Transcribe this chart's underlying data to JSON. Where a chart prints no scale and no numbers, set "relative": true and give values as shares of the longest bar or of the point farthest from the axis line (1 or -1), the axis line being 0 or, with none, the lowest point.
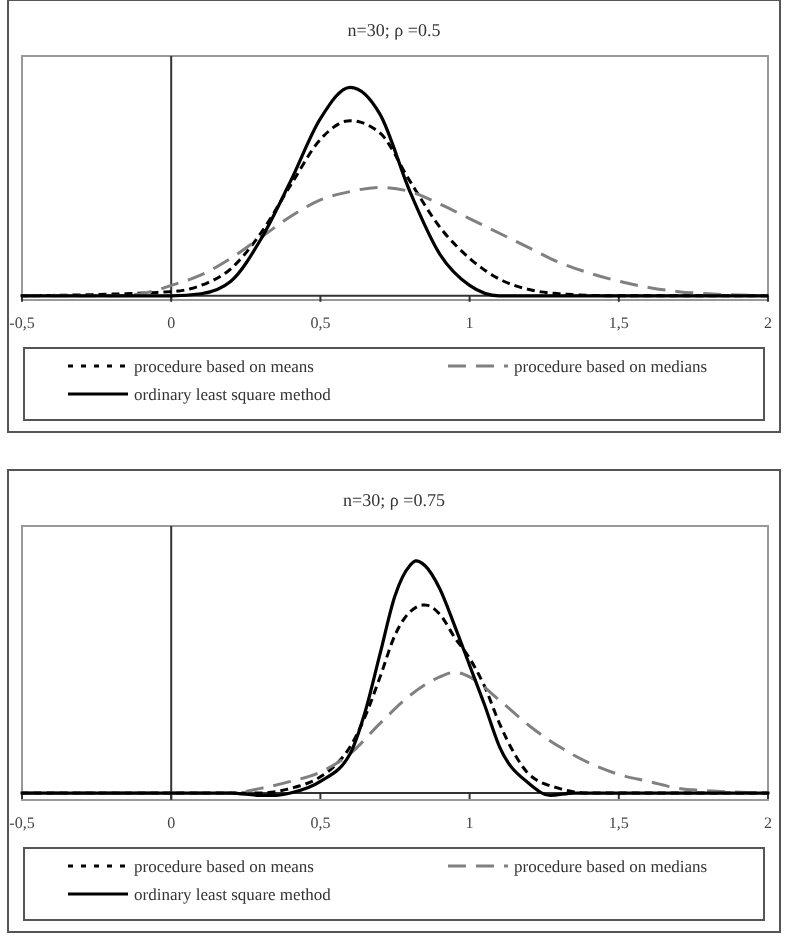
{
  "chart_data": [
    {
      "type": "line",
      "title": "n=30; ρ =0.5",
      "relative": true,
      "xlim": [
        -0.5,
        2
      ],
      "xticks": [
        {
          "value": -0.5,
          "label": "-0,5"
        },
        0,
        {
          "value": 0.5,
          "label": "0,5"
        },
        1,
        {
          "value": 1.5,
          "label": "1,5"
        },
        2
      ],
      "legend": "bottom",
      "marker": "none",
      "ref_lines": [
        {
          "axis": "x",
          "value": 0,
          "color": "#333333"
        }
      ],
      "series": [
        {
          "name": "procedure based on means",
          "color": "#000000",
          "line_style": "dotted",
          "x": [
            -0.5,
            0,
            0.1,
            0.2,
            0.3,
            0.4,
            0.5,
            0.6,
            0.7,
            0.8,
            0.9,
            1.0,
            1.1,
            1.2,
            1.3,
            1.5,
            2
          ],
          "values": [
            0,
            0.02,
            0.05,
            0.13,
            0.3,
            0.53,
            0.75,
            0.84,
            0.78,
            0.55,
            0.33,
            0.18,
            0.08,
            0.03,
            0.01,
            0,
            0
          ]
        },
        {
          "name": "procedure based on medians",
          "color": "#808080",
          "line_style": "dashed",
          "x": [
            -0.5,
            -0.2,
            -0.1,
            0,
            0.1,
            0.2,
            0.3,
            0.4,
            0.5,
            0.6,
            0.7,
            0.8,
            0.9,
            1.0,
            1.1,
            1.2,
            1.3,
            1.4,
            1.5,
            1.6,
            1.7,
            1.8,
            2
          ],
          "values": [
            0,
            0,
            0.01,
            0.05,
            0.1,
            0.18,
            0.28,
            0.38,
            0.46,
            0.5,
            0.52,
            0.5,
            0.44,
            0.37,
            0.3,
            0.23,
            0.16,
            0.11,
            0.07,
            0.04,
            0.02,
            0.01,
            0
          ]
        },
        {
          "name": "ordinary least square method",
          "color": "#000000",
          "line_style": "solid",
          "x": [
            -0.5,
            0,
            0.1,
            0.2,
            0.3,
            0.4,
            0.5,
            0.6,
            0.7,
            0.8,
            0.9,
            1.0,
            1.1,
            2
          ],
          "values": [
            0,
            0,
            0.01,
            0.07,
            0.27,
            0.55,
            0.85,
            1.0,
            0.87,
            0.5,
            0.2,
            0.05,
            0,
            0
          ]
        }
      ]
    },
    {
      "type": "line",
      "title": "n=30; ρ =0.75",
      "relative": true,
      "xlim": [
        -0.5,
        2
      ],
      "xticks": [
        {
          "value": -0.5,
          "label": "-0,5"
        },
        0,
        {
          "value": 0.5,
          "label": "0,5"
        },
        1,
        {
          "value": 1.5,
          "label": "1,5"
        },
        2
      ],
      "legend": "bottom",
      "marker": "none",
      "ref_lines": [
        {
          "axis": "x",
          "value": 0,
          "color": "#333333"
        }
      ],
      "series": [
        {
          "name": "procedure based on means",
          "color": "#000000",
          "line_style": "dotted",
          "x": [
            -0.5,
            0.3,
            0.4,
            0.5,
            0.55,
            0.6,
            0.65,
            0.7,
            0.75,
            0.8,
            0.85,
            0.9,
            0.95,
            1.0,
            1.05,
            1.1,
            1.15,
            1.2,
            1.3,
            1.4,
            2
          ],
          "values": [
            0,
            0,
            0.02,
            0.07,
            0.12,
            0.2,
            0.33,
            0.5,
            0.68,
            0.78,
            0.81,
            0.77,
            0.67,
            0.58,
            0.46,
            0.3,
            0.17,
            0.08,
            0.02,
            0,
            0
          ]
        },
        {
          "name": "procedure based on medians",
          "color": "#808080",
          "line_style": "dashed",
          "x": [
            -0.5,
            0.2,
            0.3,
            0.4,
            0.5,
            0.6,
            0.7,
            0.8,
            0.9,
            0.95,
            1.0,
            1.1,
            1.2,
            1.3,
            1.4,
            1.5,
            1.6,
            1.7,
            1.8,
            2
          ],
          "values": [
            0,
            0,
            0.02,
            0.05,
            0.09,
            0.17,
            0.3,
            0.42,
            0.5,
            0.52,
            0.5,
            0.4,
            0.29,
            0.2,
            0.13,
            0.08,
            0.05,
            0.02,
            0.01,
            0
          ]
        },
        {
          "name": "ordinary least square method",
          "color": "#000000",
          "line_style": "solid",
          "x": [
            -0.5,
            0.2,
            0.3,
            0.35,
            0.4,
            0.5,
            0.6,
            0.65,
            0.7,
            0.75,
            0.8,
            0.82,
            0.85,
            0.9,
            0.95,
            1.0,
            1.05,
            1.1,
            1.2,
            1.27,
            1.35,
            2
          ],
          "values": [
            0,
            0,
            -0.01,
            -0.01,
            0,
            0.05,
            0.17,
            0.35,
            0.6,
            0.85,
            0.98,
            1.0,
            0.98,
            0.88,
            0.72,
            0.55,
            0.38,
            0.2,
            0.04,
            -0.01,
            0,
            0
          ]
        }
      ]
    }
  ]
}
